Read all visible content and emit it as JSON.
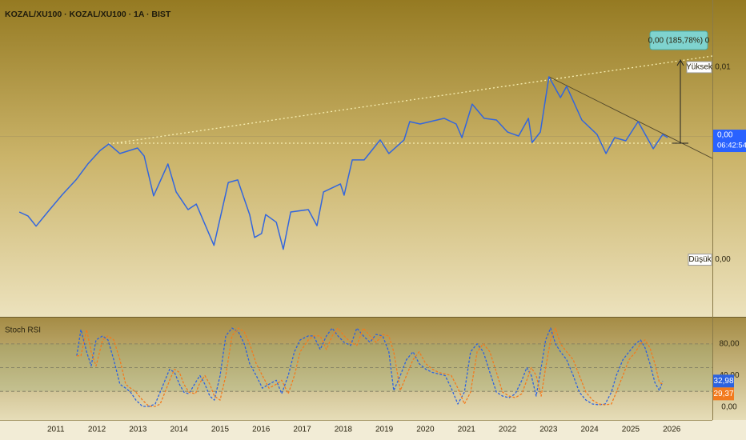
{
  "chart_data": [
    {
      "type": "line",
      "title": "KOZAL/XU100 · KOZAL/XU100 · 1A · BIST",
      "log_scale": true,
      "color": "#3366dd",
      "xlim": [
        2009.64,
        2026.99
      ],
      "ylim": [
        0.0005,
        0.028
      ],
      "x": [
        2010.11,
        2010.32,
        2010.52,
        2010.85,
        2011.16,
        2011.49,
        2011.78,
        2012.08,
        2012.29,
        2012.56,
        2012.99,
        2013.15,
        2013.38,
        2013.73,
        2013.93,
        2014.22,
        2014.42,
        2014.85,
        2015.2,
        2015.43,
        2015.53,
        2015.72,
        2015.84,
        2016.01,
        2016.11,
        2016.37,
        2016.54,
        2016.72,
        2017.15,
        2017.36,
        2017.52,
        2017.93,
        2018.02,
        2018.22,
        2018.51,
        2018.9,
        2019.11,
        2019.48,
        2019.62,
        2019.87,
        2020.46,
        2020.75,
        2020.89,
        2021.14,
        2021.43,
        2021.73,
        2022.0,
        2022.27,
        2022.51,
        2022.6,
        2022.8,
        2023.01,
        2023.29,
        2023.44,
        2023.81,
        2024.18,
        2024.4,
        2024.61,
        2024.88,
        2025.18,
        2025.55,
        2025.78,
        2025.9
      ],
      "values": [
        0.00188,
        0.00179,
        0.00157,
        0.00194,
        0.00235,
        0.00283,
        0.00347,
        0.00412,
        0.00447,
        0.00396,
        0.00425,
        0.00384,
        0.00231,
        0.00347,
        0.00243,
        0.00194,
        0.00208,
        0.00123,
        0.00274,
        0.00283,
        0.00243,
        0.00182,
        0.00136,
        0.00143,
        0.00182,
        0.00165,
        0.00117,
        0.00188,
        0.00194,
        0.00158,
        0.00243,
        0.00269,
        0.00233,
        0.00365,
        0.00365,
        0.00471,
        0.00396,
        0.00471,
        0.00595,
        0.00577,
        0.0062,
        0.00577,
        0.00485,
        0.00744,
        0.0062,
        0.00607,
        0.00521,
        0.00495,
        0.0062,
        0.00456,
        0.00521,
        0.01053,
        0.00808,
        0.00932,
        0.00607,
        0.00505,
        0.00396,
        0.00485,
        0.00466,
        0.00595,
        0.00421,
        0.00505,
        0.00485
      ],
      "high": {
        "name": "Yüksek",
        "value": 0.01053,
        "label": "0,01"
      },
      "low": {
        "name": "Düşük",
        "value": 0.00117,
        "label": "0,00"
      },
      "last": {
        "value": 0.00485,
        "label": "0,00",
        "time": "06:42:54"
      },
      "annotations": [
        "0,00 (185,78%) 0"
      ]
    },
    {
      "type": "line",
      "title": "Stoch RSI",
      "dashed": true,
      "xlim": [
        2009.64,
        2026.99
      ],
      "ylim": [
        -16.2,
        113.2
      ],
      "yticks": [
        {
          "value": 80,
          "label": "80,00"
        },
        {
          "value": 40,
          "label": "40,00"
        },
        {
          "value": 0,
          "label": "0,00"
        }
      ],
      "levels": [
        80,
        50,
        20
      ],
      "xticks": [
        2011,
        2012,
        2013,
        2014,
        2015,
        2016,
        2017,
        2018,
        2019,
        2020,
        2021,
        2022,
        2023,
        2024,
        2025,
        2026
      ],
      "x": [
        2011.51,
        2011.61,
        2011.75,
        2011.86,
        2011.98,
        2012.14,
        2012.27,
        2012.41,
        2012.56,
        2012.7,
        2012.82,
        2012.95,
        2013.11,
        2013.27,
        2013.42,
        2013.54,
        2013.66,
        2013.77,
        2013.89,
        2014.01,
        2014.12,
        2014.24,
        2014.4,
        2014.51,
        2014.63,
        2014.75,
        2014.86,
        2015.0,
        2015.14,
        2015.29,
        2015.45,
        2015.59,
        2015.72,
        2015.88,
        2016.03,
        2016.19,
        2016.37,
        2016.5,
        2016.66,
        2016.81,
        2016.95,
        2017.15,
        2017.28,
        2017.44,
        2017.59,
        2017.73,
        2017.87,
        2018.02,
        2018.18,
        2018.33,
        2018.49,
        2018.65,
        2018.8,
        2018.96,
        2019.11,
        2019.23,
        2019.39,
        2019.54,
        2019.7,
        2019.85,
        2020.01,
        2020.17,
        2020.32,
        2020.48,
        2020.63,
        2020.79,
        2020.95,
        2021.1,
        2021.26,
        2021.41,
        2021.57,
        2021.73,
        2021.88,
        2022.04,
        2022.19,
        2022.35,
        2022.47,
        2022.58,
        2022.7,
        2022.82,
        2022.93,
        2023.05,
        2023.17,
        2023.29,
        2023.44,
        2023.6,
        2023.75,
        2023.91,
        2024.07,
        2024.22,
        2024.38,
        2024.53,
        2024.65,
        2024.81,
        2024.96,
        2025.12,
        2025.24,
        2025.35,
        2025.47,
        2025.59,
        2025.7,
        2025.78
      ],
      "series": [
        {
          "color": "#2c62e0",
          "last_label": "32,98",
          "values": [
            65,
            98,
            70,
            52,
            85,
            90,
            85,
            60,
            29,
            24,
            19,
            9,
            1,
            1,
            4,
            19,
            34,
            48,
            44,
            29,
            19,
            17,
            31,
            40,
            29,
            14,
            9,
            40,
            90,
            100,
            95,
            80,
            55,
            40,
            24,
            29,
            34,
            17,
            40,
            70,
            85,
            90,
            90,
            73,
            90,
            100,
            90,
            82,
            78,
            100,
            90,
            82,
            92,
            90,
            70,
            21,
            40,
            60,
            70,
            55,
            48,
            44,
            42,
            40,
            24,
            4,
            19,
            70,
            80,
            70,
            44,
            19,
            14,
            12,
            17,
            34,
            50,
            40,
            14,
            50,
            85,
            100,
            80,
            70,
            60,
            40,
            19,
            9,
            4,
            3,
            4,
            19,
            40,
            60,
            70,
            80,
            85,
            75,
            55,
            31,
            21,
            32.98
          ]
        },
        {
          "color": "#f27a1e",
          "last_label": "29,37",
          "values": [
            65,
            65,
            98,
            70,
            52,
            85,
            90,
            85,
            60,
            29,
            24,
            19,
            9,
            1,
            1,
            4,
            19,
            34,
            48,
            44,
            29,
            19,
            17,
            31,
            40,
            29,
            14,
            9,
            40,
            90,
            100,
            95,
            80,
            55,
            40,
            24,
            29,
            34,
            17,
            40,
            70,
            85,
            90,
            90,
            73,
            90,
            100,
            90,
            82,
            78,
            100,
            90,
            82,
            92,
            90,
            70,
            21,
            40,
            60,
            70,
            55,
            48,
            44,
            42,
            40,
            24,
            4,
            19,
            70,
            80,
            70,
            44,
            19,
            14,
            12,
            17,
            34,
            50,
            40,
            14,
            50,
            85,
            100,
            80,
            70,
            60,
            40,
            19,
            9,
            4,
            3,
            4,
            19,
            40,
            60,
            70,
            80,
            85,
            75,
            55,
            31,
            29.37
          ]
        }
      ]
    }
  ]
}
